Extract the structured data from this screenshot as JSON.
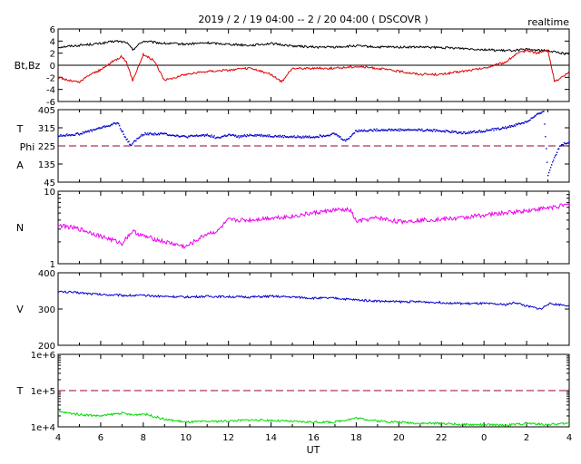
{
  "header": {
    "title": "2019 / 2 / 19  04:00 -- 2 / 20  04:00 ( DSCOVR )",
    "mode": "realtime"
  },
  "colors": {
    "bt": "#000000",
    "bz": "#e00000",
    "phi": "#0000cc",
    "density": "#ee00ee",
    "speed": "#0000cc",
    "temperature": "#00dd00",
    "reference": "#990033"
  },
  "chart_data": [
    {
      "type": "line",
      "panel": "magnetic-field",
      "ylabel": "Bt,Bz",
      "ylim": [
        -6,
        6
      ],
      "yticks": [
        "6",
        "4",
        "2",
        "0",
        "-2",
        "-4",
        "-6"
      ],
      "zero_line": 0,
      "series": [
        {
          "name": "Bt",
          "color_key": "bt",
          "x": [
            4,
            5,
            6,
            6.7,
            7.2,
            7.5,
            8,
            9,
            10,
            11,
            12,
            13,
            14,
            15,
            16,
            17,
            18,
            19,
            20,
            21,
            22,
            23,
            24,
            25,
            26,
            27,
            28
          ],
          "y": [
            3.0,
            3.3,
            3.6,
            4.0,
            3.8,
            2.6,
            4.0,
            3.6,
            3.5,
            3.7,
            3.5,
            3.3,
            3.6,
            3.2,
            3.0,
            3.0,
            3.2,
            3.0,
            3.0,
            3.0,
            2.9,
            2.8,
            2.6,
            2.4,
            2.6,
            2.4,
            1.8
          ]
        },
        {
          "name": "Bz",
          "color_key": "bz",
          "x": [
            4,
            4.5,
            5,
            5.5,
            6,
            6.5,
            7,
            7.2,
            7.5,
            8,
            8.5,
            9,
            9.5,
            10,
            11,
            12,
            13,
            14,
            14.5,
            15,
            16,
            17,
            18,
            19,
            20,
            21,
            22,
            23,
            24,
            25,
            25.5,
            26,
            26.5,
            27,
            27.3,
            27.5,
            28
          ],
          "y": [
            -2.0,
            -2.5,
            -2.8,
            -1.5,
            -0.8,
            0.5,
            1.5,
            0.5,
            -2.5,
            1.8,
            0.8,
            -2.5,
            -2.0,
            -1.5,
            -1.0,
            -0.8,
            -0.5,
            -1.5,
            -2.8,
            -0.5,
            -0.5,
            -0.5,
            -0.2,
            -0.5,
            -1.0,
            -1.5,
            -1.5,
            -1.0,
            -0.5,
            0.5,
            1.8,
            2.5,
            2.0,
            2.5,
            -2.5,
            -2.5,
            -1.0
          ]
        }
      ]
    },
    {
      "type": "scatter",
      "panel": "field-angle",
      "ylabel_lines": [
        "T",
        "Phi",
        "A"
      ],
      "ylim": [
        45,
        405
      ],
      "yticks": [
        "405",
        "315",
        "225",
        "135",
        "45"
      ],
      "reference_line": 225,
      "series": [
        {
          "name": "Phi",
          "color_key": "phi",
          "x": [
            4,
            5,
            5.5,
            6,
            6.5,
            6.8,
            7.2,
            7.4,
            8,
            9,
            10,
            11,
            11.5,
            12,
            12.5,
            13,
            14,
            15,
            16,
            17,
            17.5,
            18,
            19,
            20,
            21,
            22,
            23,
            24,
            25,
            26,
            26.8,
            27,
            27.3,
            27.6,
            28
          ],
          "y": [
            275,
            285,
            300,
            315,
            330,
            340,
            260,
            230,
            285,
            285,
            270,
            280,
            265,
            280,
            270,
            280,
            275,
            270,
            270,
            285,
            250,
            300,
            305,
            305,
            305,
            300,
            290,
            300,
            315,
            345,
            400,
            80,
            170,
            230,
            245
          ]
        }
      ]
    },
    {
      "type": "line",
      "panel": "density",
      "ylabel": "N",
      "ylim": [
        1,
        10
      ],
      "log_scale": true,
      "yticks": [
        "10",
        "1"
      ],
      "series": [
        {
          "name": "N",
          "color_key": "density",
          "x": [
            4,
            5,
            6,
            7,
            7.5,
            8,
            9,
            10,
            10.5,
            11,
            11.5,
            12,
            13,
            14,
            15,
            16,
            17,
            17.7,
            18,
            19,
            20,
            21,
            22,
            23,
            24,
            25,
            26,
            27,
            28
          ],
          "y": [
            3.4,
            3.0,
            2.4,
            1.9,
            2.8,
            2.4,
            2.0,
            1.7,
            2.1,
            2.6,
            2.8,
            4.0,
            4.0,
            4.3,
            4.5,
            5.0,
            5.5,
            5.5,
            3.8,
            4.3,
            3.8,
            4.0,
            4.1,
            4.3,
            4.7,
            5.0,
            5.4,
            5.9,
            6.5
          ]
        }
      ]
    },
    {
      "type": "line",
      "panel": "speed",
      "ylabel": "V",
      "ylim": [
        200,
        400
      ],
      "yticks": [
        "400",
        "300",
        "200"
      ],
      "series": [
        {
          "name": "V",
          "color_key": "speed",
          "x": [
            4,
            5,
            6,
            7,
            8,
            9,
            10,
            11,
            12,
            13,
            14,
            15,
            16,
            17,
            18,
            19,
            20,
            21,
            22,
            23,
            24,
            25,
            25.5,
            26,
            26.7,
            27,
            28
          ],
          "y": [
            348,
            345,
            340,
            338,
            337,
            335,
            333,
            335,
            334,
            333,
            335,
            333,
            330,
            330,
            325,
            322,
            320,
            320,
            318,
            315,
            315,
            312,
            318,
            308,
            300,
            315,
            310
          ]
        }
      ]
    },
    {
      "type": "line",
      "panel": "temperature",
      "ylabel": "T",
      "ylim": [
        10000,
        1000000
      ],
      "log_scale": true,
      "yticks": [
        "1e+6",
        "1e+5",
        "1e+4"
      ],
      "reference_line": 100000,
      "xlabel": "UT",
      "xlim": [
        4,
        28
      ],
      "xticks": [
        "4",
        "6",
        "8",
        "10",
        "12",
        "14",
        "16",
        "18",
        "20",
        "22",
        "0",
        "2",
        "4"
      ],
      "series": [
        {
          "name": "T",
          "color_key": "temperature",
          "x": [
            4,
            5,
            6,
            7,
            7.5,
            8,
            9,
            10,
            11,
            12,
            13,
            14,
            15,
            16,
            17,
            18,
            19,
            20,
            21,
            22,
            23,
            24,
            25,
            26,
            27,
            28
          ],
          "y": [
            26000,
            22000,
            20000,
            24000,
            21000,
            23000,
            16000,
            13500,
            14000,
            14500,
            15500,
            15000,
            14000,
            13500,
            13500,
            17500,
            14500,
            13500,
            12500,
            12500,
            11500,
            11500,
            11000,
            12500,
            11500,
            12500
          ]
        }
      ]
    }
  ]
}
